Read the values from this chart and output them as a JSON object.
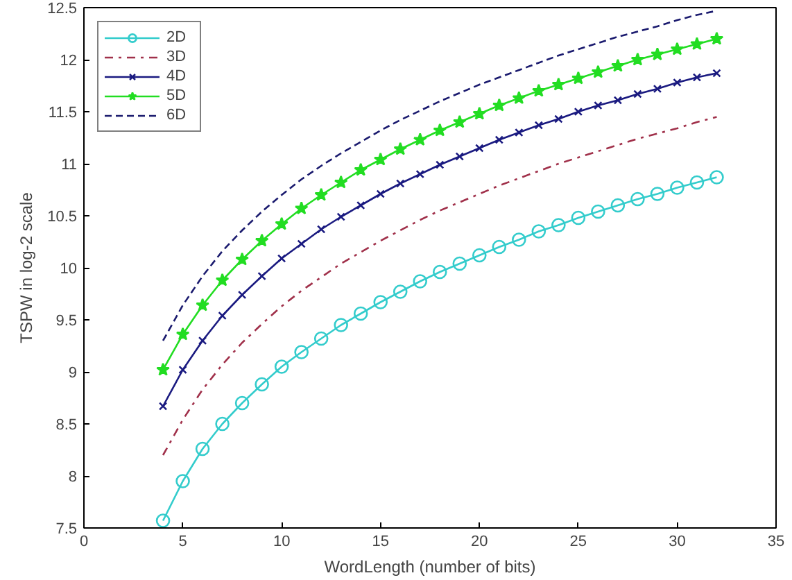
{
  "chart_data": {
    "type": "line",
    "xlabel": "WordLength (number of bits)",
    "ylabel": "TSPW in log-2 scale",
    "x": [
      4,
      5,
      6,
      7,
      8,
      9,
      10,
      11,
      12,
      13,
      14,
      15,
      16,
      17,
      18,
      19,
      20,
      21,
      22,
      23,
      24,
      25,
      26,
      27,
      28,
      29,
      30,
      31,
      32
    ],
    "xlim": [
      0,
      35
    ],
    "xticks": [
      0,
      5,
      10,
      15,
      20,
      25,
      30,
      35
    ],
    "ylim": [
      7.5,
      12.5
    ],
    "yticks": [
      7.5,
      8,
      8.5,
      9,
      9.5,
      10,
      10.5,
      11,
      11.5,
      12,
      12.5
    ],
    "grid": false,
    "legend": "top left",
    "series": [
      {
        "name": "2D",
        "color": "#33cccc",
        "marker": "circle",
        "line_style": "solid",
        "values": [
          7.57,
          7.95,
          8.26,
          8.5,
          8.7,
          8.88,
          9.05,
          9.19,
          9.32,
          9.45,
          9.56,
          9.67,
          9.77,
          9.87,
          9.96,
          10.04,
          10.12,
          10.2,
          10.27,
          10.35,
          10.41,
          10.48,
          10.54,
          10.6,
          10.66,
          10.71,
          10.77,
          10.82,
          10.87
        ]
      },
      {
        "name": "3D",
        "color": "#a0304a",
        "marker": "none",
        "line_style": "dashdot",
        "values": [
          8.2,
          8.54,
          8.83,
          9.07,
          9.28,
          9.46,
          9.63,
          9.78,
          9.91,
          10.04,
          10.15,
          10.26,
          10.36,
          10.46,
          10.55,
          10.63,
          10.71,
          10.79,
          10.86,
          10.93,
          11.0,
          11.06,
          11.12,
          11.18,
          11.24,
          11.29,
          11.34,
          11.4,
          11.45
        ]
      },
      {
        "name": "4D",
        "color": "#1a1a80",
        "marker": "cross",
        "line_style": "solid",
        "values": [
          8.67,
          9.02,
          9.3,
          9.54,
          9.74,
          9.92,
          10.09,
          10.23,
          10.37,
          10.49,
          10.6,
          10.71,
          10.81,
          10.9,
          10.99,
          11.07,
          11.15,
          11.23,
          11.3,
          11.37,
          11.43,
          11.5,
          11.56,
          11.61,
          11.67,
          11.72,
          11.78,
          11.83,
          11.87
        ]
      },
      {
        "name": "5D",
        "color": "#22dd22",
        "marker": "star",
        "line_style": "solid",
        "values": [
          9.02,
          9.36,
          9.64,
          9.88,
          10.08,
          10.26,
          10.42,
          10.57,
          10.7,
          10.82,
          10.94,
          11.04,
          11.14,
          11.23,
          11.32,
          11.4,
          11.48,
          11.56,
          11.63,
          11.7,
          11.76,
          11.82,
          11.88,
          11.94,
          12.0,
          12.05,
          12.1,
          12.15,
          12.2
        ]
      },
      {
        "name": "6D",
        "color": "#1a1a6e",
        "marker": "none",
        "line_style": "dashed",
        "values": [
          9.3,
          9.64,
          9.92,
          10.16,
          10.36,
          10.54,
          10.7,
          10.85,
          10.98,
          11.1,
          11.21,
          11.32,
          11.42,
          11.51,
          11.6,
          11.68,
          11.76,
          11.83,
          11.9,
          11.97,
          12.04,
          12.1,
          12.16,
          12.22,
          12.27,
          12.32,
          12.38,
          12.43,
          12.47
        ]
      }
    ]
  }
}
